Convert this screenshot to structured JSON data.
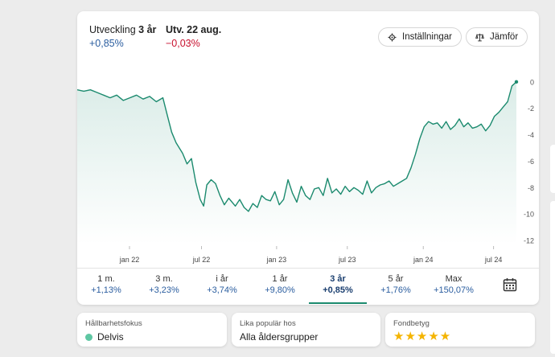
{
  "header": {
    "dev_label_plain": "Utveckling ",
    "dev_label_bold": "3 år",
    "dev_value": "+0,85%",
    "day_label": "Utv. 22 aug.",
    "day_value": "−0,03%"
  },
  "buttons": {
    "settings": "Inställningar",
    "compare": "Jämför"
  },
  "chart_data": {
    "type": "line",
    "title": "",
    "xlabel": "",
    "ylabel": "",
    "x_ticks": [
      "jan 22",
      "jul 22",
      "jan 23",
      "jul 23",
      "jan 24",
      "jul 24"
    ],
    "y_ticks": [
      0,
      -2,
      -4,
      -6,
      -8,
      -10,
      -12
    ],
    "ylim": [
      -12.3,
      0.6
    ],
    "xlim": [
      0,
      100
    ],
    "x_tick_positions": [
      11.9,
      28.3,
      45.4,
      61.5,
      78.8,
      94.8
    ],
    "series": [
      {
        "name": "",
        "color": "#1b8a6e",
        "x": [
          0,
          1.5,
          3,
          4.5,
          6,
          7.5,
          9,
          10.5,
          12,
          13.5,
          15,
          16.5,
          18,
          19.5,
          20.5,
          21.5,
          22.5,
          24,
          25,
          26,
          27,
          28,
          28.8,
          29.5,
          30.5,
          31.5,
          32.5,
          33.5,
          34.5,
          36,
          37,
          38,
          39,
          40,
          41,
          42,
          43,
          44,
          45,
          46,
          47,
          48,
          49,
          50,
          51,
          52,
          53,
          54,
          55,
          56,
          57,
          58,
          59,
          60,
          61,
          62,
          63,
          64,
          65,
          66,
          67,
          68,
          69,
          70,
          71,
          72,
          73,
          74,
          75,
          76,
          77,
          78,
          79,
          80,
          81,
          82,
          83,
          84,
          85,
          86,
          87,
          88,
          89,
          90,
          91,
          92,
          93,
          94,
          95,
          96,
          97,
          98,
          99,
          100
        ],
        "y": [
          -0.6,
          -0.7,
          -0.6,
          -0.8,
          -1.0,
          -1.2,
          -1.0,
          -1.4,
          -1.2,
          -1.0,
          -1.3,
          -1.1,
          -1.5,
          -1.2,
          -2.5,
          -3.8,
          -4.6,
          -5.4,
          -6.2,
          -5.8,
          -7.6,
          -8.9,
          -9.4,
          -7.8,
          -7.4,
          -7.7,
          -8.6,
          -9.3,
          -8.8,
          -9.4,
          -8.9,
          -9.5,
          -9.8,
          -9.2,
          -9.5,
          -8.6,
          -8.9,
          -9.0,
          -8.3,
          -9.3,
          -8.9,
          -7.4,
          -8.4,
          -9.1,
          -7.9,
          -8.6,
          -8.9,
          -8.1,
          -8.0,
          -8.6,
          -7.3,
          -8.4,
          -8.1,
          -8.5,
          -7.9,
          -8.3,
          -8.0,
          -8.2,
          -8.5,
          -7.5,
          -8.4,
          -8.0,
          -7.8,
          -7.7,
          -7.5,
          -7.9,
          -7.7,
          -7.5,
          -7.3,
          -6.5,
          -5.5,
          -4.3,
          -3.4,
          -3.0,
          -3.2,
          -3.1,
          -3.5,
          -3.0,
          -3.6,
          -3.3,
          -2.8,
          -3.4,
          -3.1,
          -3.5,
          -3.4,
          -3.2,
          -3.7,
          -3.3,
          -2.6,
          -2.3,
          -1.9,
          -1.5,
          -0.3,
          0.0
        ]
      }
    ]
  },
  "tabs": [
    {
      "label": "1 m.",
      "value": "+1,13%",
      "active": false
    },
    {
      "label": "3 m.",
      "value": "+3,23%",
      "active": false
    },
    {
      "label": "i år",
      "value": "+3,74%",
      "active": false
    },
    {
      "label": "1 år",
      "value": "+9,80%",
      "active": false
    },
    {
      "label": "3 år",
      "value": "+0,85%",
      "active": true
    },
    {
      "label": "5 år",
      "value": "+1,76%",
      "active": false
    },
    {
      "label": "Max",
      "value": "+150,07%",
      "active": false
    }
  ],
  "cards": {
    "sustainability": {
      "title": "Hållbarhetsfokus",
      "value": "Delvis",
      "dot_color": "#5fc7a3"
    },
    "popular": {
      "title": "Lika populär hos",
      "value": "Alla åldersgrupper"
    },
    "rating": {
      "title": "Fondbetyg",
      "stars": "★★★★★",
      "rating": 5
    }
  },
  "colors": {
    "line": "#1b8a6e",
    "positive": "#2a5d9f",
    "negative": "#c8102e",
    "stars": "#f4b400"
  }
}
